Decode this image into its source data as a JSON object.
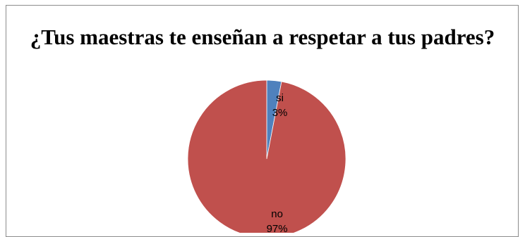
{
  "chart_data": {
    "type": "pie",
    "title": "¿Tus maestras te enseñan a respetar a tus padres?",
    "categories": [
      "si",
      "no"
    ],
    "values": [
      3,
      97
    ],
    "data_labels": [
      {
        "category": "si",
        "percent": "3%"
      },
      {
        "category": "no",
        "percent": "97%"
      }
    ],
    "colors": [
      "#4f81bd",
      "#c0504d"
    ],
    "legend": "none"
  }
}
